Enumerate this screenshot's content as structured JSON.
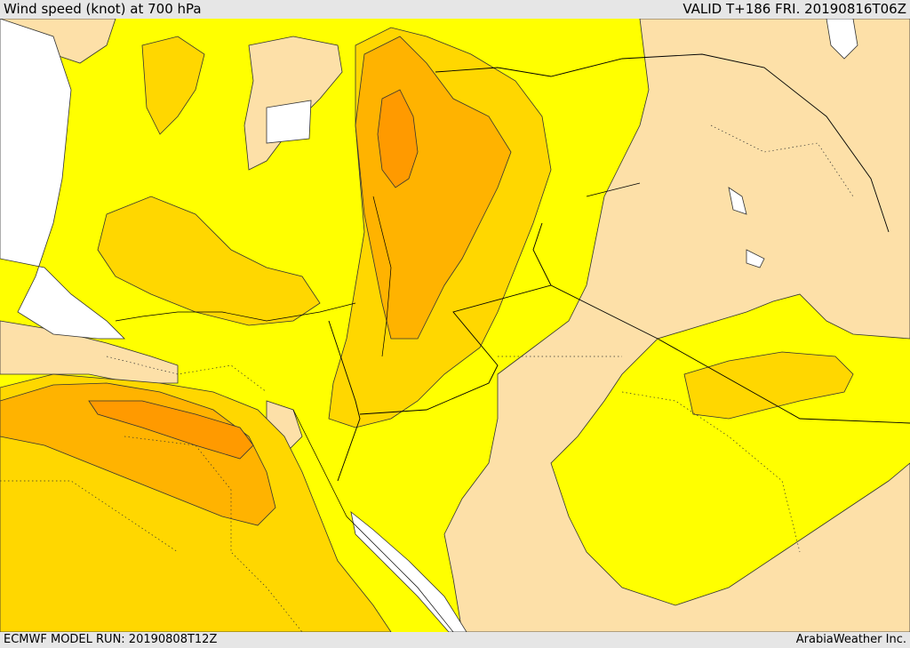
{
  "header": {
    "title": "Wind speed (knot) at 700 hPa",
    "valid": "VALID T+186 FRI. 20190816T06Z"
  },
  "footer": {
    "model_run": "ECMWF MODEL RUN: 20190808T12Z",
    "credit": "ArabiaWeather Inc."
  },
  "colors": {
    "band_low": "#fde0a8",
    "band_1": "#ffff00",
    "band_2": "#ffd700",
    "band_3": "#ffb300",
    "band_4": "#ff9a00",
    "missing": "#ffffff",
    "outline": "#000000"
  },
  "layers": [
    {
      "name": "yellow",
      "color_key": "band_1"
    },
    {
      "name": "gold",
      "color_key": "band_2"
    },
    {
      "name": "orange",
      "color_key": "band_3"
    },
    {
      "name": "dark-orange",
      "color_key": "band_4"
    }
  ]
}
